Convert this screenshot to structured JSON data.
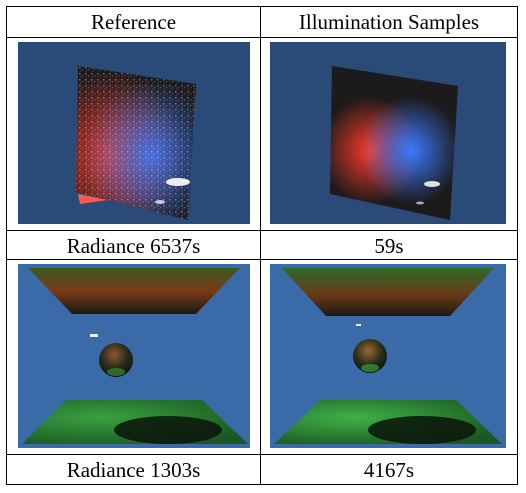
{
  "table": {
    "headers": [
      "Reference",
      "Illumination Samples"
    ],
    "rows": [
      {
        "captions": [
          "Radiance 6537s",
          "59s"
        ]
      },
      {
        "captions": [
          "Radiance 1303s",
          "4167s"
        ]
      }
    ]
  },
  "colors": {
    "sky_blue": "#2a4a78",
    "panel_dark": "#1c1a1a",
    "red_light": "#ff3a28",
    "blue_light": "#3a7aff",
    "green_floor": "#2f8a3a"
  }
}
